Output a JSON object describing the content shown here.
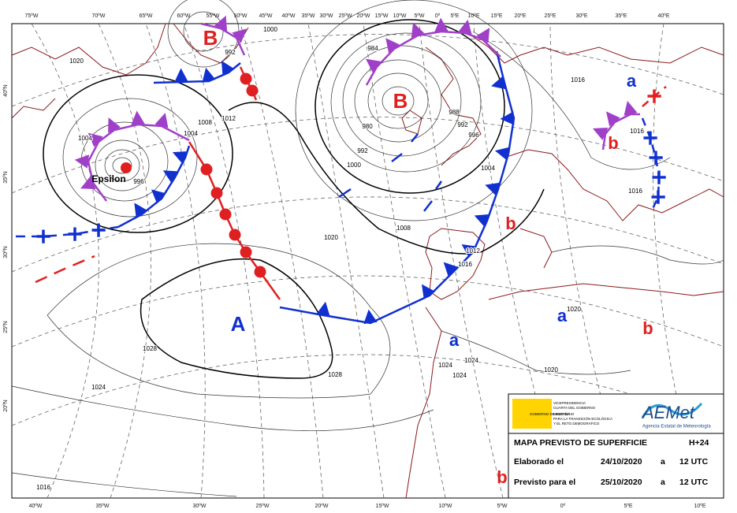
{
  "graticule": {
    "top": [
      "75ºW",
      "70ºW",
      "65ºW",
      "60ºW",
      "55ºW",
      "50ºW",
      "45ºW",
      "40ºW",
      "35ºW",
      "30ºW",
      "25ºW",
      "20ºW",
      "15ºW",
      "10ºW",
      "5ºW",
      "0º",
      "5ºE",
      "10ºE",
      "15ºE",
      "20ºE",
      "25ºE",
      "30ºE",
      "35ºE",
      "40ºE"
    ],
    "bottom": [
      "40ºW",
      "35ºW",
      "30ºW",
      "25ºW",
      "20ºW",
      "15ºW",
      "10ºW",
      "5ºW",
      "0º",
      "5ºE",
      "10ºE"
    ],
    "left": [
      "40ºN",
      "35ºN",
      "30ºN",
      "25ºN",
      "20ºN"
    ]
  },
  "systems": [
    "B",
    "B",
    "A",
    "a",
    "b",
    "b",
    "a",
    "b",
    "a",
    "b"
  ],
  "storm": "Epsilon",
  "isobar_labels": [
    "1020",
    "1004",
    "1008",
    "1012",
    "1004",
    "996",
    "1000",
    "992",
    "984",
    "980",
    "988",
    "992",
    "996",
    "1000",
    "992",
    "1004",
    "1016",
    "1016",
    "1016",
    "1020",
    "1008",
    "1012",
    "1016",
    "1028",
    "1028",
    "1024",
    "1024",
    "1024",
    "1024",
    "1020",
    "1020",
    "1016"
  ],
  "info": {
    "gov_1": "VICEPRESIDENCIA",
    "gov_2": "CUARTA DEL GOBIERNO",
    "gov_3": "MINISTERIO",
    "gov_4": "PARA LA TRANSICIÓN ECOLÓGICA",
    "gov_5": "Y EL RETO DEMOGRÁFICO",
    "gov_left": "GOBIERNO DE ESPAÑA",
    "logo": "AEMet",
    "logo_sub": "Agencia Estatal de Meteorología",
    "title": "MAPA PREVISTO DE SUPERFICIE",
    "range": "H+24",
    "rows": [
      [
        "Elaborado el",
        "24/10/2020",
        "a",
        "12 UTC"
      ],
      [
        "Previsto para el",
        "25/10/2020",
        "a",
        "12 UTC"
      ]
    ]
  }
}
